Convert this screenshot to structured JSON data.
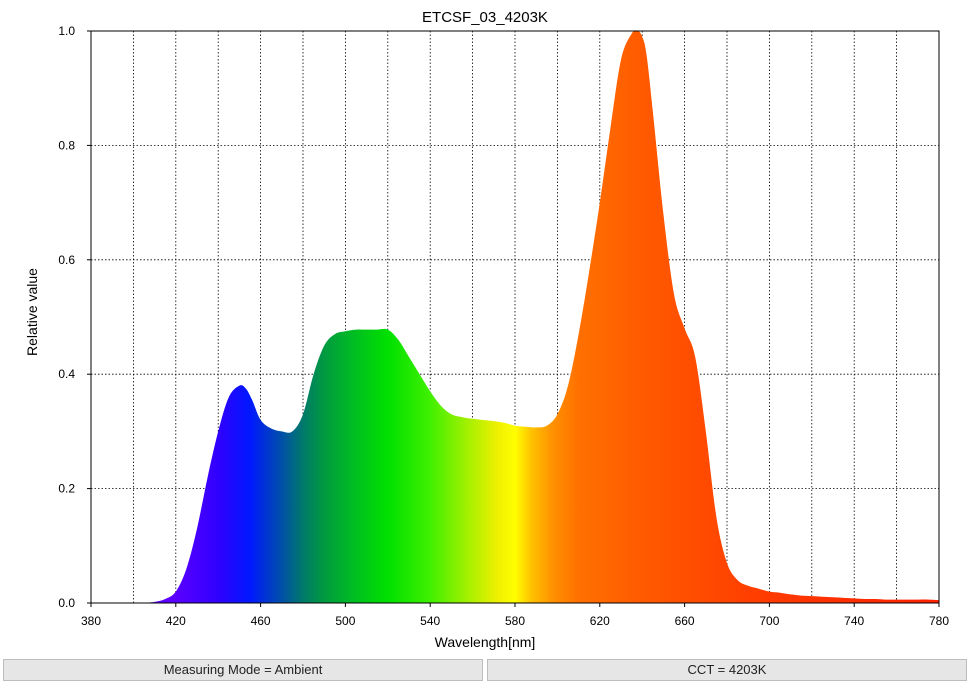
{
  "chart_data": {
    "type": "area",
    "title": "ETCSF_03_4203K",
    "xlabel": "Wavelength[nm]",
    "ylabel": "Relative value",
    "xlim": [
      380,
      780
    ],
    "ylim": [
      0,
      1.0
    ],
    "xticks": [
      380,
      420,
      460,
      500,
      540,
      580,
      620,
      660,
      700,
      740,
      780
    ],
    "yticks": [
      0.0,
      0.2,
      0.4,
      0.6,
      0.8,
      1.0
    ],
    "xtick_labels": [
      "380",
      "420",
      "460",
      "500",
      "540",
      "580",
      "620",
      "660",
      "700",
      "740",
      "780"
    ],
    "ytick_labels": [
      "0.0",
      "0.2",
      "0.4",
      "0.6",
      "0.8",
      "1.0"
    ],
    "grid": true,
    "fill": "visible-spectrum gradient",
    "x": [
      405,
      410,
      415,
      420,
      425,
      430,
      435,
      440,
      445,
      450,
      453,
      456,
      460,
      465,
      470,
      475,
      480,
      485,
      490,
      495,
      500,
      505,
      510,
      515,
      520,
      525,
      530,
      535,
      540,
      545,
      550,
      555,
      560,
      565,
      570,
      575,
      580,
      585,
      590,
      595,
      600,
      605,
      610,
      615,
      620,
      625,
      630,
      635,
      638,
      640,
      642,
      645,
      650,
      655,
      660,
      665,
      670,
      675,
      680,
      685,
      690,
      695,
      700,
      705,
      710,
      715,
      720,
      725,
      730,
      735,
      740,
      745,
      750,
      755,
      760,
      765,
      770,
      775,
      780
    ],
    "y": [
      0.0,
      0.002,
      0.007,
      0.02,
      0.06,
      0.13,
      0.22,
      0.3,
      0.36,
      0.38,
      0.375,
      0.355,
      0.32,
      0.305,
      0.3,
      0.3,
      0.33,
      0.4,
      0.45,
      0.47,
      0.475,
      0.478,
      0.478,
      0.478,
      0.478,
      0.46,
      0.43,
      0.4,
      0.37,
      0.345,
      0.33,
      0.325,
      0.322,
      0.32,
      0.318,
      0.315,
      0.31,
      0.308,
      0.307,
      0.31,
      0.33,
      0.38,
      0.47,
      0.58,
      0.7,
      0.83,
      0.95,
      0.995,
      1.0,
      0.99,
      0.96,
      0.86,
      0.68,
      0.54,
      0.48,
      0.43,
      0.3,
      0.15,
      0.07,
      0.04,
      0.03,
      0.025,
      0.02,
      0.018,
      0.015,
      0.013,
      0.012,
      0.011,
      0.01,
      0.009,
      0.008,
      0.007,
      0.007,
      0.006,
      0.006,
      0.006,
      0.006,
      0.006,
      0.005
    ]
  },
  "status": {
    "measuring_mode": "Measuring Mode = Ambient",
    "cct": "CCT = 4203K"
  },
  "colors": {
    "grid": "#000000",
    "axis": "#000000",
    "status_bg": "#e6e6e6"
  }
}
